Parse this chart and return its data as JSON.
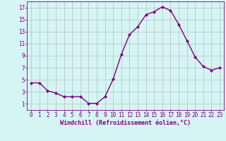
{
  "x": [
    0,
    1,
    2,
    3,
    4,
    5,
    6,
    7,
    8,
    9,
    10,
    11,
    12,
    13,
    14,
    15,
    16,
    17,
    18,
    19,
    20,
    21,
    22,
    23
  ],
  "y": [
    4.5,
    4.5,
    3.2,
    2.8,
    2.2,
    2.2,
    2.2,
    1.1,
    1.1,
    2.2,
    5.1,
    9.2,
    12.5,
    13.8,
    15.8,
    16.3,
    17.1,
    16.5,
    14.2,
    11.5,
    8.8,
    7.2,
    6.6,
    7.0
  ],
  "line_color": "#800080",
  "marker": "D",
  "marker_size": 2,
  "xlabel": "Windchill (Refroidissement éolien,°C)",
  "xlabel_fontsize": 6,
  "ylim": [
    0,
    18
  ],
  "xlim": [
    -0.5,
    23.5
  ],
  "yticks": [
    1,
    3,
    5,
    7,
    9,
    11,
    13,
    15,
    17
  ],
  "xticks": [
    0,
    1,
    2,
    3,
    4,
    5,
    6,
    7,
    8,
    9,
    10,
    11,
    12,
    13,
    14,
    15,
    16,
    17,
    18,
    19,
    20,
    21,
    22,
    23
  ],
  "bg_color": "#d5f5f5",
  "grid_color": "#b0b0b0",
  "line_width": 1.0,
  "tick_fontsize": 5.5
}
